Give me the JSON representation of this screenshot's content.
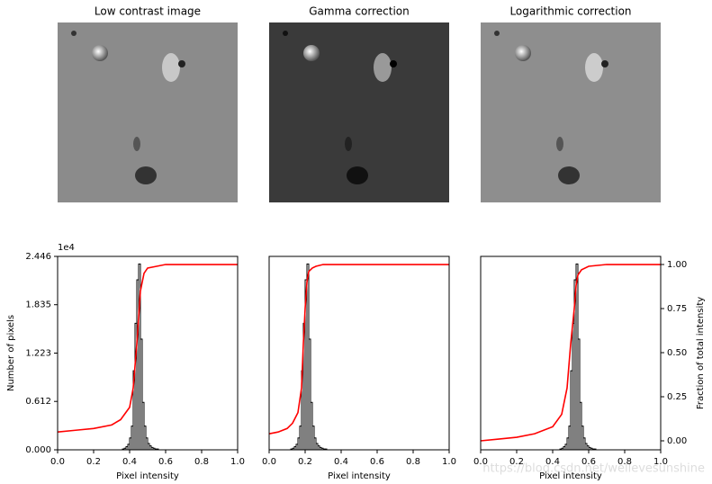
{
  "panels": [
    {
      "title": "Low contrast image"
    },
    {
      "title": "Gamma correction"
    },
    {
      "title": "Logarithmic correction"
    }
  ],
  "watermark": "https://blog.csdn.net/wellevesunshine",
  "chart_data": [
    {
      "type": "histogram",
      "bins": [
        0.36,
        0.37,
        0.38,
        0.39,
        0.4,
        0.41,
        0.42,
        0.43,
        0.44,
        0.45,
        0.46,
        0.47,
        0.48,
        0.49,
        0.5,
        0.51,
        0.52,
        0.53,
        0.54,
        0.55,
        0.56
      ],
      "values": [
        0.01,
        0.02,
        0.04,
        0.07,
        0.15,
        0.3,
        1.0,
        1.6,
        2.15,
        2.35,
        1.4,
        0.6,
        0.3,
        0.15,
        0.08,
        0.05,
        0.03,
        0.02,
        0.01,
        0.01
      ],
      "color": "#000000",
      "cdf": {
        "x": [
          0,
          0.1,
          0.2,
          0.3,
          0.35,
          0.4,
          0.42,
          0.44,
          0.45,
          0.46,
          0.48,
          0.5,
          0.55,
          0.6,
          0.8,
          1.0
        ],
        "values": [
          0.05,
          0.06,
          0.07,
          0.09,
          0.12,
          0.19,
          0.3,
          0.55,
          0.7,
          0.85,
          0.95,
          0.98,
          0.99,
          1.0,
          1.0,
          1.0
        ],
        "color": "#ff0000",
        "axis": "y2"
      },
      "xlim": [
        0,
        1
      ],
      "xticks": [
        {
          "value": 0,
          "label": "0.0"
        },
        {
          "value": 0.2,
          "label": "0.2"
        },
        {
          "value": 0.4,
          "label": "0.4"
        },
        {
          "value": 0.6,
          "label": "0.6"
        },
        {
          "value": 0.8,
          "label": "0.8"
        },
        {
          "value": 1,
          "label": "1.0"
        }
      ],
      "xlabel": "Pixel intensity",
      "ylim": [
        0,
        2.446
      ],
      "yticks": [
        {
          "value": 0,
          "label": "0.000"
        },
        {
          "value": 0.612,
          "label": "0.612"
        },
        {
          "value": 1.223,
          "label": "1.223"
        },
        {
          "value": 1.835,
          "label": "1.835"
        },
        {
          "value": 2.446,
          "label": "2.446"
        }
      ],
      "ylabel": "Number of pixels",
      "y_offset_label": "1e4",
      "y2lim": [
        -0.051,
        1.046
      ]
    },
    {
      "type": "histogram",
      "bins": [
        0.12,
        0.13,
        0.14,
        0.15,
        0.16,
        0.17,
        0.18,
        0.19,
        0.2,
        0.21,
        0.22,
        0.23,
        0.24,
        0.25,
        0.26,
        0.27,
        0.28,
        0.29,
        0.3,
        0.31,
        0.32
      ],
      "values": [
        0.01,
        0.02,
        0.04,
        0.07,
        0.15,
        0.3,
        1.0,
        1.6,
        2.15,
        2.35,
        1.4,
        0.6,
        0.3,
        0.15,
        0.08,
        0.05,
        0.03,
        0.02,
        0.01,
        0.01
      ],
      "color": "#000000",
      "cdf": {
        "x": [
          0,
          0.05,
          0.1,
          0.13,
          0.16,
          0.18,
          0.19,
          0.2,
          0.21,
          0.22,
          0.24,
          0.26,
          0.3,
          0.4,
          0.6,
          1.0
        ],
        "values": [
          0.04,
          0.05,
          0.07,
          0.1,
          0.16,
          0.3,
          0.55,
          0.75,
          0.9,
          0.96,
          0.98,
          0.99,
          1.0,
          1.0,
          1.0,
          1.0
        ],
        "color": "#ff0000",
        "axis": "y2"
      },
      "xlim": [
        0,
        1
      ],
      "xticks": [
        {
          "value": 0,
          "label": "0.0"
        },
        {
          "value": 0.2,
          "label": "0.2"
        },
        {
          "value": 0.4,
          "label": "0.4"
        },
        {
          "value": 0.6,
          "label": "0.6"
        },
        {
          "value": 0.8,
          "label": "0.8"
        },
        {
          "value": 1,
          "label": "1.0"
        }
      ],
      "xlabel": "Pixel intensity",
      "ylim": [
        0,
        2.446
      ],
      "y2lim": [
        -0.051,
        1.046
      ]
    },
    {
      "type": "histogram",
      "bins": [
        0.44,
        0.45,
        0.46,
        0.47,
        0.48,
        0.49,
        0.5,
        0.51,
        0.52,
        0.53,
        0.54,
        0.55,
        0.56,
        0.57,
        0.58,
        0.59,
        0.6,
        0.61,
        0.62,
        0.63,
        0.64
      ],
      "values": [
        0.01,
        0.02,
        0.04,
        0.07,
        0.15,
        0.3,
        1.0,
        1.6,
        2.15,
        2.35,
        1.4,
        0.6,
        0.3,
        0.15,
        0.08,
        0.05,
        0.03,
        0.02,
        0.01,
        0.01
      ],
      "color": "#000000",
      "cdf": {
        "x": [
          0,
          0.1,
          0.2,
          0.3,
          0.4,
          0.45,
          0.48,
          0.5,
          0.52,
          0.53,
          0.54,
          0.56,
          0.6,
          0.7,
          0.8,
          1.0
        ],
        "values": [
          0.0,
          0.01,
          0.02,
          0.04,
          0.08,
          0.15,
          0.3,
          0.55,
          0.75,
          0.88,
          0.94,
          0.97,
          0.99,
          1.0,
          1.0,
          1.0
        ],
        "color": "#ff0000",
        "axis": "y2"
      },
      "xlim": [
        0,
        1
      ],
      "xticks": [
        {
          "value": 0,
          "label": "0.0"
        },
        {
          "value": 0.2,
          "label": "0.2"
        },
        {
          "value": 0.4,
          "label": "0.4"
        },
        {
          "value": 0.6,
          "label": "0.6"
        },
        {
          "value": 0.8,
          "label": "0.8"
        },
        {
          "value": 1,
          "label": "1.0"
        }
      ],
      "xlabel": "Pixel intensity",
      "ylim": [
        0,
        2.446
      ],
      "y2lim": [
        -0.051,
        1.046
      ],
      "y2ticks": [
        {
          "value": 0,
          "label": "0.00"
        },
        {
          "value": 0.25,
          "label": "0.25"
        },
        {
          "value": 0.5,
          "label": "0.50"
        },
        {
          "value": 0.75,
          "label": "0.75"
        },
        {
          "value": 1,
          "label": "1.00"
        }
      ],
      "y2label": "Fraction of total intensity"
    }
  ]
}
